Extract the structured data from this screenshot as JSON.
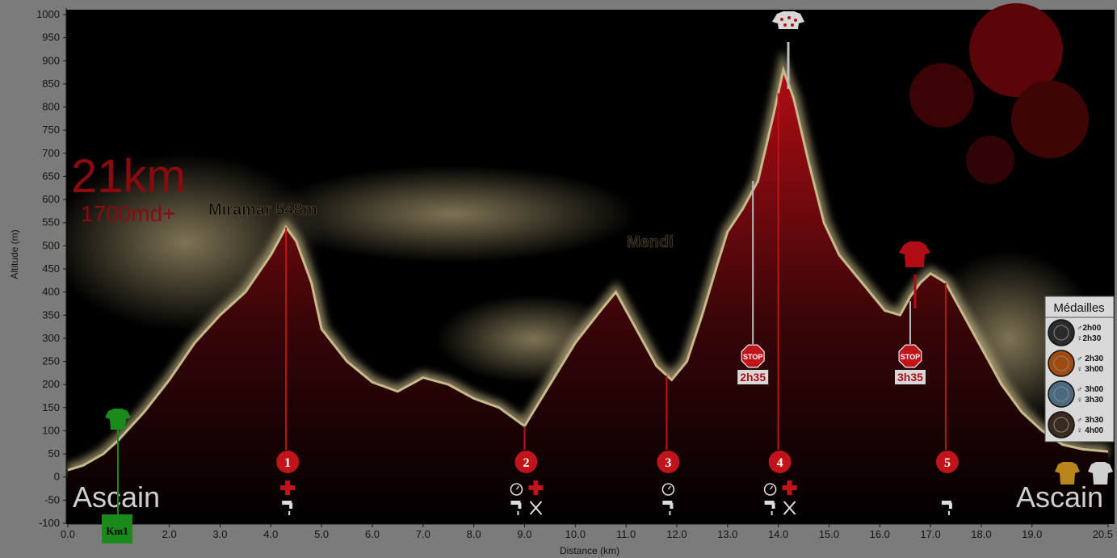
{
  "chart_data": {
    "type": "area",
    "xlabel": "Distance   (km)",
    "ylabel": "Altitude (m)",
    "xlim": [
      0,
      20.5
    ],
    "ylim": [
      -100,
      1000
    ],
    "x_ticks": [
      "0.0",
      "1.0",
      "2.0",
      "3.0",
      "4.0",
      "5.0",
      "6.0",
      "7.0",
      "8.0",
      "9.0",
      "10.0",
      "11.0",
      "12.0",
      "13.0",
      "14.0",
      "15.0",
      "16.0",
      "17.0",
      "18.0",
      "19.0",
      "20.5"
    ],
    "y_ticks": [
      "1000",
      "950",
      "900",
      "850",
      "800",
      "750",
      "700",
      "650",
      "600",
      "550",
      "500",
      "450",
      "400",
      "350",
      "300",
      "250",
      "200",
      "150",
      "100",
      "50",
      "0",
      "-50",
      "-100"
    ],
    "series": [
      {
        "x": [
          0.0,
          0.3,
          0.7,
          1.0,
          1.5,
          2.0,
          2.5,
          3.0,
          3.5,
          4.0,
          4.3,
          4.5,
          4.8,
          5.0,
          5.5,
          6.0,
          6.5,
          7.0,
          7.5,
          8.0,
          8.5,
          9.0,
          9.5,
          10.0,
          10.5,
          10.8,
          11.0,
          11.3,
          11.6,
          11.9,
          12.2,
          12.5,
          12.8,
          13.0,
          13.3,
          13.6,
          13.9,
          14.1,
          14.3,
          14.6,
          14.9,
          15.2,
          15.5,
          15.8,
          16.1,
          16.4,
          16.6,
          16.8,
          17.0,
          17.3,
          17.6,
          18.0,
          18.4,
          18.8,
          19.2,
          19.6,
          20.0,
          20.5
        ],
        "values": [
          15,
          25,
          50,
          80,
          140,
          210,
          290,
          350,
          400,
          480,
          540,
          510,
          420,
          320,
          250,
          205,
          185,
          215,
          200,
          170,
          150,
          110,
          200,
          290,
          360,
          400,
          360,
          300,
          240,
          210,
          250,
          350,
          460,
          530,
          580,
          640,
          780,
          880,
          820,
          680,
          550,
          480,
          440,
          400,
          360,
          350,
          390,
          420,
          440,
          420,
          360,
          280,
          200,
          140,
          100,
          70,
          60,
          55
        ]
      }
    ],
    "annotations": {
      "distance_label": "21km",
      "elevation_gain_label": "1700md+",
      "peak_labels": [
        "Miramar 548m",
        "Mendi"
      ],
      "start_label": "Ascain",
      "finish_label": "Ascain",
      "km_marker": "Km1",
      "checkpoints": [
        {
          "number": "1",
          "km": 4.3
        },
        {
          "number": "2",
          "km": 9.0
        },
        {
          "number": "3",
          "km": 11.8
        },
        {
          "number": "4",
          "km": 14.0
        },
        {
          "number": "5",
          "km": 17.3
        }
      ],
      "cutoffs": [
        {
          "text": "STOP",
          "time": "2h35",
          "km": 13.5
        },
        {
          "text": "STOP",
          "time": "3h35",
          "km": 16.6
        }
      ]
    },
    "medals": {
      "title": "Médailles",
      "rows": [
        {
          "m": "♂2h00",
          "f": "♀2h30",
          "color": "#2b2b2b"
        },
        {
          "m": "♂ 2h30",
          "f": "♀ 3h00",
          "color": "#a04a10"
        },
        {
          "m": "♂ 3h00",
          "f": "♀ 3h30",
          "color": "#4a6a80"
        },
        {
          "m": "♂ 3h30",
          "f": "♀ 4h00",
          "color": "#3a2a20"
        }
      ]
    },
    "grid": false,
    "colors": {
      "background": "#7b7b7b",
      "plot": "#000000",
      "profile_fill": "#8b0d12",
      "profile_glow": "#c8b98a",
      "checkpoint": "#c0141a",
      "start_jersey": "#1a8a1a",
      "finish_jersey": "#b8861a"
    }
  }
}
